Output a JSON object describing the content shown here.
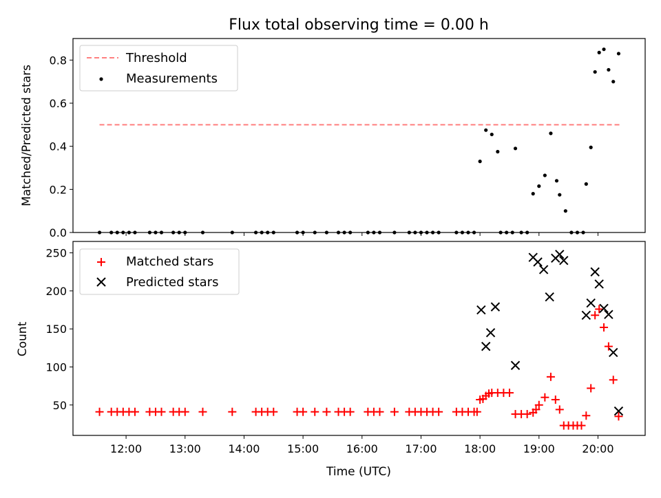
{
  "title": "Flux total observing time = 0.00 h",
  "chart_data": [
    {
      "type": "scatter",
      "ylabel": "Matched/Predicted stars",
      "xlim": [
        11.1,
        20.8
      ],
      "ylim": [
        0,
        0.9
      ],
      "yticks": [
        0.0,
        0.2,
        0.4,
        0.6,
        0.8
      ],
      "ytick_labels": [
        "0.0",
        "0.2",
        "0.4",
        "0.6",
        "0.8"
      ],
      "legend": {
        "placement": "top-left",
        "entries": [
          "Threshold",
          "Measurements"
        ]
      },
      "threshold": {
        "name": "Threshold",
        "value": 0.5,
        "x_range": [
          11.55,
          20.4
        ],
        "color": "#ff7f7f"
      },
      "series": [
        {
          "name": "Measurements",
          "color": "#000000",
          "marker": "dot",
          "x": [
            11.55,
            11.75,
            11.85,
            11.95,
            12.05,
            12.15,
            12.4,
            12.5,
            12.6,
            12.8,
            12.9,
            13.0,
            13.3,
            13.8,
            14.2,
            14.3,
            14.4,
            14.5,
            14.9,
            15.0,
            15.2,
            15.4,
            15.6,
            15.7,
            15.8,
            16.1,
            16.2,
            16.3,
            16.55,
            16.8,
            16.9,
            17.0,
            17.1,
            17.2,
            17.3,
            17.6,
            17.7,
            17.8,
            17.9,
            18.0,
            18.1,
            18.2,
            18.3,
            18.35,
            18.45,
            18.55,
            18.6,
            18.7,
            18.8,
            18.9,
            19.0,
            19.1,
            19.2,
            19.3,
            19.35,
            19.45,
            19.55,
            19.65,
            19.75,
            19.8,
            19.88,
            19.95,
            20.02,
            20.1,
            20.18,
            20.26,
            20.35
          ],
          "y": [
            0,
            0,
            0,
            0,
            0,
            0,
            0,
            0,
            0,
            0,
            0,
            0,
            0,
            0,
            0,
            0,
            0,
            0,
            0,
            0,
            0,
            0,
            0,
            0,
            0,
            0,
            0,
            0,
            0,
            0,
            0,
            0,
            0,
            0,
            0,
            0,
            0,
            0,
            0,
            0.33,
            0.475,
            0.455,
            0.375,
            0,
            0,
            0,
            0.39,
            0,
            0,
            0.18,
            0.215,
            0.265,
            0.46,
            0.24,
            0.175,
            0.1,
            0,
            0,
            0,
            0.225,
            0.395,
            0.745,
            0.835,
            0.85,
            0.755,
            0.7,
            0.83
          ]
        }
      ]
    },
    {
      "type": "scatter",
      "xlabel": "Time (UTC)",
      "ylabel": "Count",
      "xlim": [
        11.1,
        20.8
      ],
      "ylim": [
        10,
        265
      ],
      "xticks": [
        12,
        13,
        14,
        15,
        16,
        17,
        18,
        19,
        20
      ],
      "xtick_labels": [
        "12:00",
        "13:00",
        "14:00",
        "15:00",
        "16:00",
        "17:00",
        "18:00",
        "19:00",
        "20:00"
      ],
      "yticks": [
        50,
        100,
        150,
        200,
        250
      ],
      "ytick_labels": [
        "50",
        "100",
        "150",
        "200",
        "250"
      ],
      "legend": {
        "placement": "top-left",
        "entries": [
          "Matched stars",
          "Predicted stars"
        ]
      },
      "series": [
        {
          "name": "Matched stars",
          "color": "#ff0000",
          "marker": "plus",
          "x": [
            11.55,
            11.75,
            11.85,
            11.95,
            12.05,
            12.15,
            12.4,
            12.5,
            12.6,
            12.8,
            12.9,
            13.0,
            13.3,
            13.8,
            14.2,
            14.3,
            14.4,
            14.5,
            14.9,
            15.0,
            15.2,
            15.4,
            15.6,
            15.7,
            15.8,
            16.1,
            16.2,
            16.3,
            16.55,
            16.8,
            16.9,
            17.0,
            17.1,
            17.2,
            17.3,
            17.6,
            17.7,
            17.8,
            17.9,
            17.95,
            18.0,
            18.05,
            18.1,
            18.15,
            18.2,
            18.3,
            18.4,
            18.5,
            18.6,
            18.7,
            18.8,
            18.9,
            18.95,
            19.0,
            19.1,
            19.2,
            19.28,
            19.35,
            19.42,
            19.5,
            19.58,
            19.65,
            19.72,
            19.8,
            19.88,
            19.95,
            20.02,
            20.1,
            20.18,
            20.26,
            20.35
          ],
          "y": [
            41,
            41,
            41,
            41,
            41,
            41,
            41,
            41,
            41,
            41,
            41,
            41,
            41,
            41,
            41,
            41,
            41,
            41,
            41,
            41,
            41,
            41,
            41,
            41,
            41,
            41,
            41,
            41,
            41,
            41,
            41,
            41,
            41,
            41,
            41,
            41,
            41,
            41,
            41,
            41,
            57,
            58,
            62,
            65,
            66,
            66,
            66,
            66,
            38,
            38,
            38,
            40,
            44,
            50,
            60,
            87,
            57,
            44,
            23,
            23,
            23,
            23,
            23,
            36,
            72,
            168,
            176,
            152,
            127,
            83,
            35
          ]
        },
        {
          "name": "Predicted stars",
          "color": "#000000",
          "marker": "x",
          "x": [
            18.02,
            18.1,
            18.18,
            18.26,
            18.6,
            18.9,
            18.98,
            19.08,
            19.18,
            19.28,
            19.35,
            19.42,
            19.8,
            19.88,
            19.95,
            20.02,
            20.1,
            20.18,
            20.26,
            20.35
          ],
          "y": [
            175,
            127,
            145,
            179,
            102,
            244,
            238,
            228,
            192,
            243,
            248,
            240,
            168,
            184,
            225,
            209,
            177,
            169,
            119,
            42
          ]
        }
      ]
    }
  ]
}
